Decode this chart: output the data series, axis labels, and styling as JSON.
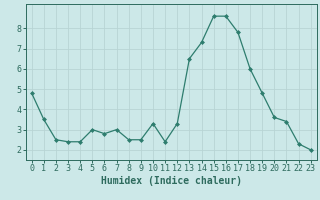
{
  "x": [
    0,
    1,
    2,
    3,
    4,
    5,
    6,
    7,
    8,
    9,
    10,
    11,
    12,
    13,
    14,
    15,
    16,
    17,
    18,
    19,
    20,
    21,
    22,
    23
  ],
  "y": [
    4.8,
    3.5,
    2.5,
    2.4,
    2.4,
    3.0,
    2.8,
    3.0,
    2.5,
    2.5,
    3.3,
    2.4,
    3.3,
    6.5,
    7.3,
    8.6,
    8.6,
    7.8,
    6.0,
    4.8,
    3.6,
    3.4,
    2.3,
    2.0
  ],
  "line_color": "#2e7d6e",
  "marker": "D",
  "marker_size": 2,
  "bg_color": "#cce8e8",
  "grid_color": "#b8d4d4",
  "xlabel": "Humidex (Indice chaleur)",
  "ylim": [
    1.5,
    9.2
  ],
  "xlim": [
    -0.5,
    23.5
  ],
  "yticks": [
    2,
    3,
    4,
    5,
    6,
    7,
    8
  ],
  "xticks": [
    0,
    1,
    2,
    3,
    4,
    5,
    6,
    7,
    8,
    9,
    10,
    11,
    12,
    13,
    14,
    15,
    16,
    17,
    18,
    19,
    20,
    21,
    22,
    23
  ],
  "tick_color": "#2e6b5e",
  "spine_color": "#2e6b5e",
  "xlabel_fontsize": 7,
  "tick_fontsize": 6
}
